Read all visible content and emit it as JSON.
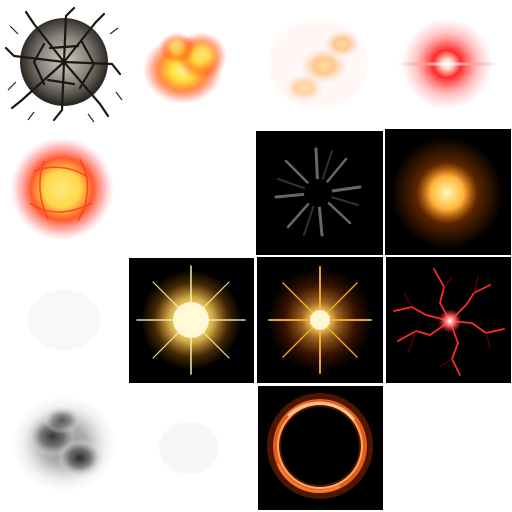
{
  "sheet": {
    "background": "#ffffff",
    "rows": [
      {
        "sprites": [
          {
            "id": "cracked-rock-burst",
            "background": "transparent",
            "colors": [
              "#2b2824",
              "#8a857c",
              "#d2cdc3"
            ]
          },
          {
            "id": "orange-fire-puff",
            "background": "transparent",
            "colors": [
              "#ffe23a",
              "#ff7a1a",
              "#ff3d1a"
            ]
          },
          {
            "id": "faint-orange-flame-wisp",
            "background": "transparent",
            "colors": [
              "#ffe0a0",
              "#ffb15c",
              "#ffd2c0"
            ]
          },
          {
            "id": "red-glow-flare",
            "background": "transparent",
            "colors": [
              "#ffffff",
              "#ff2a2a",
              "#ff9a9a"
            ]
          }
        ]
      },
      {
        "sprites": [
          {
            "id": "red-energy-orb",
            "background": "transparent",
            "colors": [
              "#ffd84a",
              "#ff5a2a",
              "#ffb0b0"
            ]
          },
          {
            "id": "empty-cell",
            "background": "transparent",
            "colors": []
          },
          {
            "id": "grey-radial-streaks",
            "background": "#000000",
            "colors": [
              "#8a8a8a",
              "#3c3c3c"
            ]
          },
          {
            "id": "orange-sun-glow",
            "background": "#000000",
            "colors": [
              "#fff6c0",
              "#ffb23a",
              "#ff6a00"
            ]
          }
        ]
      },
      {
        "sprites": [
          {
            "id": "faint-white-wisp",
            "background": "transparent",
            "colors": [
              "#f0f0f0"
            ]
          },
          {
            "id": "golden-sparkle-burst",
            "background": "#000000",
            "colors": [
              "#fffbe0",
              "#ffd35a",
              "#ff9a1a"
            ]
          },
          {
            "id": "orange-star-flare",
            "background": "#000000",
            "colors": [
              "#fff8d0",
              "#ffb23a",
              "#ff5a00"
            ]
          },
          {
            "id": "red-lightning-burst",
            "background": "#000000",
            "colors": [
              "#ffffff",
              "#ff2a2a",
              "#8a0000"
            ]
          }
        ]
      },
      {
        "sprites": [
          {
            "id": "dark-smoke-cloud",
            "background": "transparent",
            "colors": [
              "#111111",
              "#5a5a5a",
              "#cfcfcf"
            ]
          },
          {
            "id": "faint-pale-wisp",
            "background": "transparent",
            "colors": [
              "#eeeaf2"
            ]
          },
          {
            "id": "orange-fire-ring",
            "background": "#000000",
            "colors": [
              "#ffb070",
              "#ff6a1a",
              "#8a2a00"
            ]
          },
          {
            "id": "empty-cell",
            "background": "transparent",
            "colors": []
          }
        ]
      }
    ]
  }
}
